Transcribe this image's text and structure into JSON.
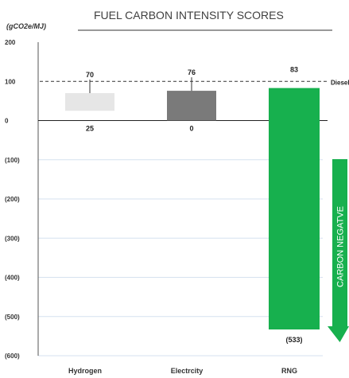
{
  "chart_data": {
    "type": "bar",
    "title": "FUEL CARBON INTENSITY SCORES",
    "ylabel": "(gCO2e/MJ)",
    "ylim": [
      -600,
      200
    ],
    "yticks": [
      {
        "value": 200,
        "label": "200"
      },
      {
        "value": 100,
        "label": "100"
      },
      {
        "value": 0,
        "label": "0"
      },
      {
        "value": -100,
        "label": "(100)"
      },
      {
        "value": -200,
        "label": "(200)"
      },
      {
        "value": -300,
        "label": "(300)"
      },
      {
        "value": -400,
        "label": "(400)"
      },
      {
        "value": -500,
        "label": "(500)"
      },
      {
        "value": -600,
        "label": "(600)"
      }
    ],
    "grid": true,
    "reference_line": {
      "value": 100,
      "label": "Diesel",
      "style": "dashed"
    },
    "bars": [
      {
        "category": "Hydrogen",
        "low": 25,
        "high": 70,
        "low_label": "25",
        "high_label": "70",
        "color": "#e6e6e6"
      },
      {
        "category": "Electrcity",
        "low": 0,
        "high": 76,
        "low_label": "0",
        "high_label": "76",
        "color": "#7a7a7a"
      },
      {
        "category": "RNG",
        "low": -533,
        "high": 83,
        "low_label": "(533)",
        "high_label": "83",
        "color": "#17b04e"
      }
    ],
    "annotation": {
      "text": "CARBON NEGATVE",
      "color": "#17b04e"
    }
  }
}
